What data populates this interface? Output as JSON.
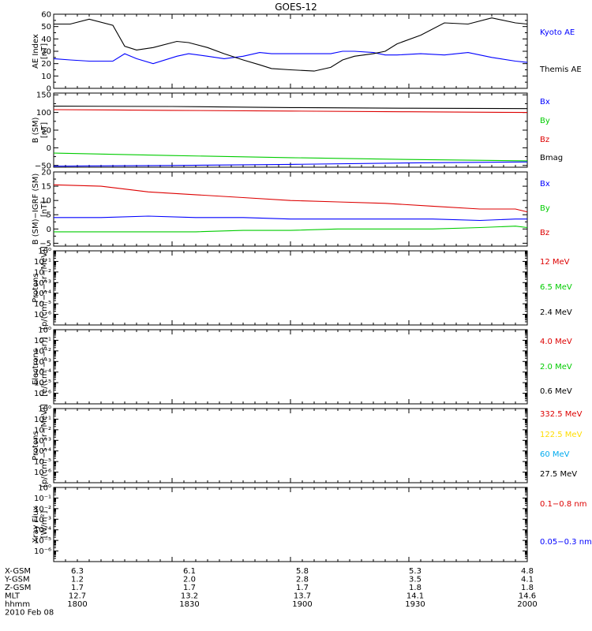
{
  "title": "GOES-12",
  "colors": {
    "black": "#000000",
    "blue": "#0000ff",
    "red": "#dd0000",
    "green": "#00cc00",
    "yellow": "#ffdd00",
    "cyan": "#00aaee"
  },
  "chart_data": [
    {
      "type": "line",
      "ylabel": [
        "AE Index",
        "[nT]"
      ],
      "ylim": [
        0,
        60
      ],
      "yscale": "linear",
      "yticks": [
        0,
        10,
        20,
        30,
        40,
        50,
        60
      ],
      "ticklabels": [
        "0",
        "10",
        "20",
        "30",
        "40",
        "50",
        "60"
      ],
      "x": [
        0,
        7,
        15,
        25,
        30,
        35,
        42,
        52,
        57,
        65,
        72,
        80,
        87,
        92,
        100,
        110,
        117,
        122,
        127,
        135,
        140,
        145,
        155,
        165,
        175,
        185,
        195,
        200
      ],
      "series": [
        {
          "name": "Kyoto AE",
          "color": "blue",
          "values": [
            24,
            23,
            22,
            22,
            28,
            24,
            20,
            26,
            28,
            26,
            24,
            26,
            29,
            28,
            28,
            28,
            28,
            30,
            30,
            29,
            27,
            27,
            28,
            27,
            29,
            25,
            22,
            21
          ]
        },
        {
          "name": "Themis AE",
          "color": "black",
          "values": [
            52,
            52,
            56,
            51,
            34,
            31,
            33,
            38,
            37,
            33,
            28,
            23,
            19,
            16,
            15,
            14,
            17,
            23,
            26,
            28,
            30,
            36,
            43,
            53,
            52,
            57,
            53,
            52
          ]
        }
      ]
    },
    {
      "type": "line",
      "ylabel": [
        "B (SM)",
        "[nT]"
      ],
      "ylim": [
        -55,
        155
      ],
      "yscale": "linear",
      "yticks": [
        -50,
        0,
        50,
        100,
        150
      ],
      "ticklabels": [
        "−50",
        "0",
        "50",
        "100",
        "150"
      ],
      "x": [
        0,
        50,
        100,
        150,
        200
      ],
      "series": [
        {
          "name": "Bx",
          "color": "blue",
          "values": [
            -52,
            -50,
            -47,
            -43,
            -40
          ]
        },
        {
          "name": "By",
          "color": "green",
          "values": [
            -15,
            -22,
            -28,
            -33,
            -37
          ]
        },
        {
          "name": "Bz",
          "color": "red",
          "values": [
            108,
            106,
            104,
            102,
            100
          ]
        },
        {
          "name": "Bmag",
          "color": "black",
          "values": [
            118,
            117,
            114,
            112,
            111
          ]
        }
      ]
    },
    {
      "type": "line",
      "ylabel": [
        "B (SM)−IGRF (SM)",
        "[nT]"
      ],
      "ylim": [
        -6,
        20
      ],
      "yscale": "linear",
      "yticks": [
        -5,
        0,
        5,
        10,
        15,
        20
      ],
      "ticklabels": [
        "−5",
        "0",
        "5",
        "10",
        "15",
        "20"
      ],
      "x": [
        0,
        20,
        40,
        60,
        80,
        100,
        120,
        140,
        160,
        180,
        195,
        200
      ],
      "series": [
        {
          "name": "Bx",
          "color": "blue",
          "values": [
            4,
            4,
            4.5,
            4,
            4,
            3.5,
            3.5,
            3.5,
            3.5,
            3,
            3.5,
            3.5
          ]
        },
        {
          "name": "By",
          "color": "green",
          "values": [
            -1,
            -1,
            -1,
            -1,
            -0.5,
            -0.5,
            0,
            0,
            0,
            0.5,
            1,
            0.5
          ]
        },
        {
          "name": "Bz",
          "color": "red",
          "values": [
            15.5,
            15,
            13,
            12,
            11,
            10,
            9.5,
            9,
            8,
            7,
            7,
            6
          ]
        }
      ]
    },
    {
      "type": "line",
      "ylabel": [
        "Protons",
        "[p/(cm²−s−sr−MeV)]"
      ],
      "ylim": [
        -7,
        0
      ],
      "yscale": "log",
      "yticks": [
        0,
        -1,
        -2,
        -3,
        -4,
        -5,
        -6
      ],
      "ticklabels": [
        "10⁰",
        "10⁻¹",
        "10⁻²",
        "10⁻³",
        "10⁻⁴",
        "10⁻⁵",
        "10⁻⁶"
      ],
      "series": [
        {
          "name": "12 MeV",
          "color": "red",
          "values": []
        },
        {
          "name": "6.5 MeV",
          "color": "green",
          "values": []
        },
        {
          "name": "2.4 MeV",
          "color": "black",
          "values": []
        }
      ]
    },
    {
      "type": "line",
      "ylabel": [
        "Electrons",
        "[e/(cm²−s−sr)]"
      ],
      "ylim": [
        -7,
        0
      ],
      "yscale": "log",
      "yticks": [
        0,
        -1,
        -2,
        -3,
        -4,
        -5,
        -6
      ],
      "ticklabels": [
        "10⁰",
        "10⁻¹",
        "10⁻²",
        "10⁻³",
        "10⁻⁴",
        "10⁻⁵",
        "10⁻⁶"
      ],
      "series": [
        {
          "name": "4.0 MeV",
          "color": "red",
          "values": []
        },
        {
          "name": "2.0 MeV",
          "color": "green",
          "values": []
        },
        {
          "name": "0.6 MeV",
          "color": "black",
          "values": []
        }
      ]
    },
    {
      "type": "line",
      "ylabel": [
        "Protons",
        "[p/(cm²−s−sr−MeV)]"
      ],
      "ylim": [
        -7,
        0
      ],
      "yscale": "log",
      "yticks": [
        0,
        -1,
        -2,
        -3,
        -4,
        -5,
        -6
      ],
      "ticklabels": [
        "10⁰",
        "10⁻¹",
        "10⁻²",
        "10⁻³",
        "10⁻⁴",
        "10⁻⁵",
        "10⁻⁶"
      ],
      "series": [
        {
          "name": "332.5 MeV",
          "color": "red",
          "values": []
        },
        {
          "name": "122.5 MeV",
          "color": "yellow",
          "values": []
        },
        {
          "name": "60 MeV",
          "color": "cyan",
          "values": []
        },
        {
          "name": "27.5 MeV",
          "color": "black",
          "values": []
        }
      ]
    },
    {
      "type": "line",
      "ylabel": [
        "Xray Flux",
        "[W/m²]"
      ],
      "ylim": [
        -7,
        0
      ],
      "yscale": "log",
      "yticks": [
        0,
        -1,
        -2,
        -3,
        -4,
        -5,
        -6
      ],
      "ticklabels": [
        "10⁰",
        "10⁻¹",
        "10⁻²",
        "10⁻³",
        "10⁻⁴",
        "10⁻⁵",
        "10⁻⁶"
      ],
      "series": [
        {
          "name": "0.1−0.8 nm",
          "color": "red",
          "values": []
        },
        {
          "name": "0.05−0.3 nm",
          "color": "blue",
          "values": []
        }
      ]
    }
  ],
  "ephemeris": {
    "rows": [
      {
        "label": "X-GSM",
        "values": [
          "6.3",
          "6.1",
          "5.8",
          "5.3",
          "4.8"
        ]
      },
      {
        "label": "Y-GSM",
        "values": [
          "1.2",
          "2.0",
          "2.8",
          "3.5",
          "4.1"
        ]
      },
      {
        "label": "Z-GSM",
        "values": [
          "1.7",
          "1.7",
          "1.7",
          "1.8",
          "1.8"
        ]
      },
      {
        "label": "MLT",
        "values": [
          "12.7",
          "13.2",
          "13.7",
          "14.1",
          "14.6"
        ]
      },
      {
        "label": "hhmm",
        "values": [
          "1800",
          "1830",
          "1900",
          "1930",
          "2000"
        ]
      }
    ],
    "date": "2010 Feb 08"
  }
}
